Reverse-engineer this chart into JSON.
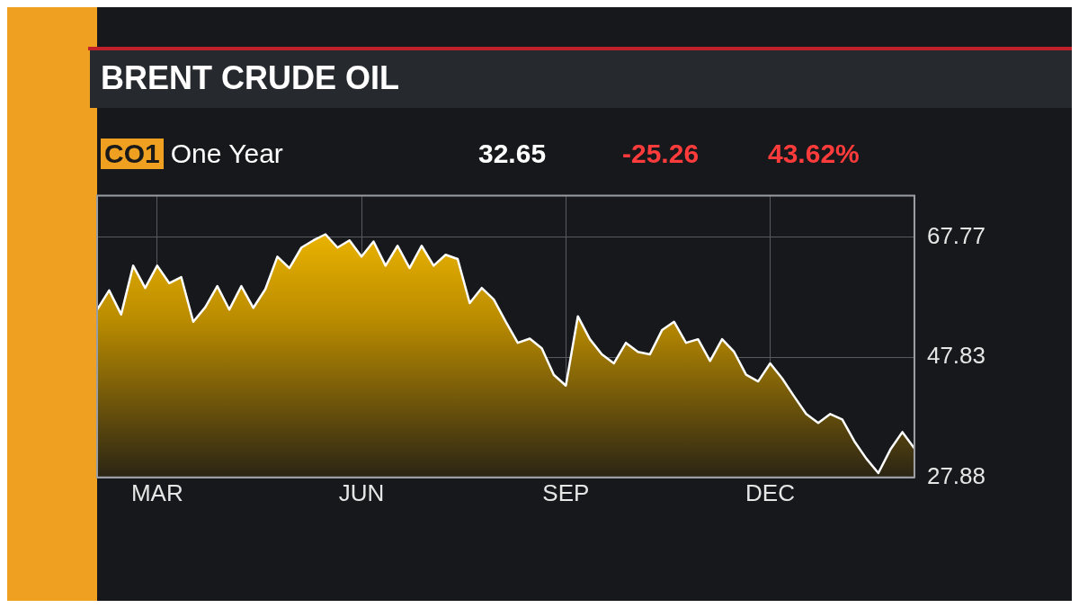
{
  "chart_data": {
    "type": "area",
    "title": "BRENT CRUDE OIL",
    "subtitle": "CO1 One Year",
    "annotations": [
      "32.65",
      "-25.26",
      "43.62%"
    ],
    "categories": [
      null,
      null,
      null,
      null,
      null,
      "MAR",
      null,
      null,
      null,
      null,
      null,
      null,
      null,
      null,
      null,
      null,
      null,
      null,
      null,
      null,
      null,
      null,
      "JUN",
      null,
      null,
      null,
      null,
      null,
      null,
      null,
      null,
      null,
      null,
      null,
      null,
      null,
      null,
      null,
      null,
      "SEP",
      null,
      null,
      null,
      null,
      null,
      null,
      null,
      null,
      null,
      null,
      null,
      null,
      null,
      null,
      null,
      null,
      "DEC",
      null,
      null,
      null,
      null,
      null,
      null,
      null,
      null,
      null,
      null,
      null,
      null
    ],
    "ylim": [
      27.88,
      74.6
    ],
    "yticks": [
      27.88,
      47.83,
      67.77
    ],
    "grid": true,
    "legend": false,
    "tick_labels": "xy",
    "series": [
      {
        "color": "#ffffff",
        "values": [
          55.7,
          58.9,
          54.9,
          63.0,
          59.3,
          63.0,
          60.1,
          61.1,
          53.7,
          56.1,
          59.6,
          55.7,
          59.6,
          56.0,
          59.1,
          64.5,
          62.6,
          66.0,
          67.2,
          68.2,
          66.0,
          67.2,
          64.5,
          67.0,
          63.0,
          66.3,
          62.6,
          66.3,
          63.0,
          64.8,
          64.1,
          56.8,
          59.3,
          57.4,
          53.7,
          50.2,
          50.9,
          49.3,
          44.9,
          43.1,
          54.6,
          50.8,
          48.3,
          46.8,
          50.2,
          48.7,
          48.3,
          52.3,
          53.7,
          50.2,
          50.8,
          47.2,
          50.8,
          48.7,
          44.9,
          43.8,
          46.8,
          44.3,
          41.3,
          38.4,
          36.9,
          38.4,
          37.5,
          33.9,
          31.0,
          28.6,
          32.5,
          35.4,
          32.7
        ]
      }
    ]
  }
}
